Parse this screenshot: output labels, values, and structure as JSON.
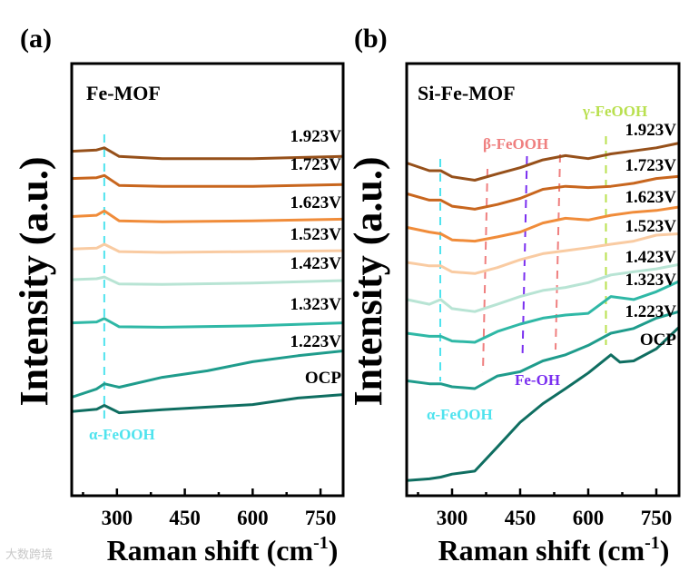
{
  "chart_data": [
    {
      "type": "line",
      "panel_label": "(a)",
      "title": "Fe-MOF",
      "xlabel": "Raman shift (cm",
      "xlabel_sup": "-1",
      "xlabel_end": ")",
      "ylabel": "Intensity (a.u.)",
      "xlim": [
        200,
        800
      ],
      "ylim": [
        0,
        100
      ],
      "xticks": [
        300,
        450,
        600,
        750
      ],
      "xticks_minor": [
        225,
        375,
        525,
        675
      ],
      "yticks": [],
      "grid": false,
      "series": [
        {
          "name": "1.923V",
          "color": "#96501a",
          "x": [
            200,
            255,
            272,
            305,
            400,
            600,
            800
          ],
          "y": [
            79.7,
            80.0,
            80.5,
            78.5,
            78.0,
            78.0,
            78.5
          ]
        },
        {
          "name": "1.723V",
          "color": "#c8661e",
          "x": [
            200,
            255,
            272,
            305,
            400,
            600,
            800
          ],
          "y": [
            73.4,
            73.6,
            74.1,
            71.8,
            71.6,
            71.6,
            72.0
          ]
        },
        {
          "name": "1.623V",
          "color": "#f08c3a",
          "x": [
            200,
            255,
            272,
            305,
            400,
            600,
            800
          ],
          "y": [
            64.6,
            64.9,
            65.9,
            63.6,
            63.4,
            63.6,
            64.0
          ]
        },
        {
          "name": "1.523V",
          "color": "#f9cba2",
          "x": [
            200,
            255,
            272,
            305,
            400,
            600,
            800
          ],
          "y": [
            57.1,
            57.3,
            58.2,
            56.5,
            56.3,
            56.5,
            56.7
          ]
        },
        {
          "name": "1.423V",
          "color": "#b8e4d4",
          "x": [
            200,
            255,
            272,
            305,
            400,
            600,
            800
          ],
          "y": [
            50.0,
            50.2,
            50.6,
            49.0,
            48.9,
            49.2,
            49.8
          ]
        },
        {
          "name": "1.323V",
          "color": "#2fb8a6",
          "x": [
            200,
            255,
            272,
            305,
            400,
            600,
            800
          ],
          "y": [
            40.0,
            40.2,
            41.0,
            39.1,
            39.0,
            39.3,
            40.0
          ]
        },
        {
          "name": "1.223V",
          "color": "#1f9c8c",
          "x": [
            200,
            255,
            272,
            305,
            400,
            500,
            600,
            700,
            800
          ],
          "y": [
            22.8,
            24.7,
            25.9,
            25.1,
            27.4,
            28.9,
            31.0,
            32.4,
            33.5
          ]
        },
        {
          "name": "OCP",
          "color": "#0f6e61",
          "x": [
            200,
            255,
            272,
            305,
            400,
            500,
            600,
            700,
            800
          ],
          "y": [
            19.5,
            20.0,
            20.9,
            19.2,
            19.9,
            20.5,
            21.1,
            22.6,
            23.4
          ]
        }
      ],
      "annotations": [
        {
          "text": "α-FeOOH",
          "x": 272,
          "color": "#4fe3ee"
        }
      ]
    },
    {
      "type": "line",
      "panel_label": "(b)",
      "title": "Si-Fe-MOF",
      "xlabel": "Raman shift (cm",
      "xlabel_sup": "-1",
      "xlabel_end": ")",
      "ylabel": "Intensity (a.u.)",
      "xlim": [
        200,
        800
      ],
      "ylim": [
        0,
        100
      ],
      "xticks": [
        300,
        450,
        600,
        750
      ],
      "xticks_minor": [
        225,
        375,
        525,
        675
      ],
      "yticks": [],
      "grid": false,
      "series": [
        {
          "name": "1.923V",
          "color": "#96501a",
          "x": [
            200,
            250,
            275,
            300,
            350,
            400,
            450,
            500,
            550,
            600,
            650,
            700,
            750,
            800
          ],
          "y": [
            77.0,
            75.2,
            75.2,
            73.8,
            73.0,
            74.5,
            75.9,
            77.7,
            78.7,
            78.0,
            79.1,
            79.8,
            80.5,
            81.6
          ]
        },
        {
          "name": "1.723V",
          "color": "#c8661e",
          "x": [
            200,
            250,
            275,
            300,
            350,
            400,
            450,
            500,
            550,
            600,
            650,
            700,
            750,
            800
          ],
          "y": [
            69.9,
            68.4,
            68.4,
            67.0,
            66.3,
            67.4,
            68.8,
            70.9,
            71.6,
            71.3,
            71.6,
            72.3,
            73.4,
            73.9
          ]
        },
        {
          "name": "1.623V",
          "color": "#f08c3a",
          "x": [
            200,
            250,
            275,
            300,
            350,
            400,
            450,
            500,
            550,
            600,
            650,
            700,
            750,
            800
          ],
          "y": [
            62.1,
            61.0,
            60.6,
            59.2,
            58.9,
            59.9,
            61.0,
            63.1,
            64.2,
            63.8,
            64.9,
            65.6,
            66.0,
            66.8
          ]
        },
        {
          "name": "1.523V",
          "color": "#f9cba2",
          "x": [
            200,
            250,
            275,
            300,
            350,
            400,
            450,
            500,
            550,
            600,
            650,
            700,
            750,
            800
          ],
          "y": [
            54.0,
            53.2,
            53.2,
            51.8,
            51.4,
            52.8,
            54.6,
            56.0,
            56.7,
            57.4,
            58.2,
            58.9,
            60.3,
            60.6
          ]
        },
        {
          "name": "1.423V",
          "color": "#b8e4d4",
          "x": [
            200,
            250,
            275,
            300,
            350,
            400,
            450,
            500,
            550,
            600,
            650,
            700,
            750,
            800
          ],
          "y": [
            45.4,
            44.3,
            45.4,
            43.3,
            42.6,
            44.3,
            46.1,
            47.5,
            48.2,
            49.3,
            51.1,
            51.8,
            52.5,
            53.5
          ]
        },
        {
          "name": "1.323V",
          "color": "#2fb8a6",
          "x": [
            200,
            250,
            275,
            300,
            350,
            400,
            450,
            500,
            550,
            600,
            650,
            700,
            750,
            800
          ],
          "y": [
            37.6,
            36.9,
            36.9,
            35.8,
            35.5,
            38.0,
            39.7,
            41.1,
            41.8,
            42.2,
            46.1,
            45.4,
            47.2,
            49.6
          ]
        },
        {
          "name": "1.223V",
          "color": "#1f9c8c",
          "x": [
            200,
            250,
            275,
            300,
            350,
            400,
            450,
            500,
            550,
            600,
            650,
            700,
            750,
            800
          ],
          "y": [
            26.6,
            25.9,
            25.9,
            25.2,
            24.8,
            27.7,
            28.7,
            31.2,
            32.6,
            34.8,
            37.6,
            38.7,
            41.1,
            42.6
          ]
        },
        {
          "name": "OCP",
          "color": "#0f6e61",
          "x": [
            200,
            250,
            275,
            300,
            350,
            400,
            450,
            500,
            550,
            600,
            650,
            670,
            700,
            750,
            800
          ],
          "y": [
            3.5,
            3.9,
            4.3,
            5.0,
            5.7,
            11.3,
            17.0,
            21.3,
            24.8,
            28.4,
            32.6,
            30.9,
            31.2,
            34.0,
            39.0
          ]
        }
      ],
      "annotations": [
        {
          "text": "α-FeOOH",
          "x": 274,
          "color": "#4fe3ee"
        },
        {
          "text": "β-FeOOH",
          "x": 378,
          "color": "#ef7f7f"
        },
        {
          "text": "Fe-OH",
          "x": 465,
          "color": "#7a2ff0"
        },
        {
          "text": "β-FeOOH",
          "x": 538,
          "color": "#ef7f7f",
          "label_hidden_duplicate": true
        },
        {
          "text": "γ-FeOOH",
          "x": 639,
          "color": "#b9e04f"
        }
      ]
    }
  ],
  "watermark": "大数跨境"
}
